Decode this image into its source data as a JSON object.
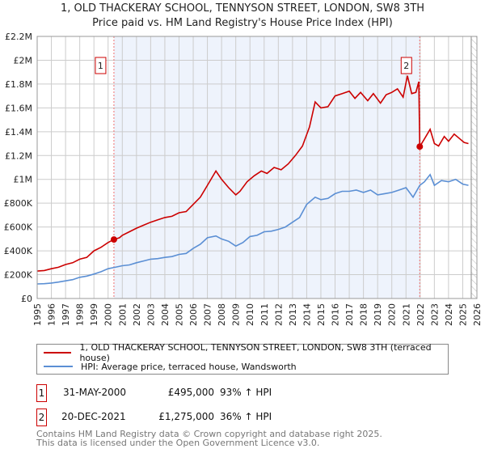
{
  "title": "1, OLD THACKERAY SCHOOL, TENNYSON STREET, LONDON, SW8 3TH",
  "subtitle": "Price paid vs. HM Land Registry's House Price Index (HPI)",
  "chart_data": {
    "type": "line",
    "title": "1, OLD THACKERAY SCHOOL, TENNYSON STREET, LONDON, SW8 3TH",
    "xlim": [
      1995,
      2026
    ],
    "ylim": [
      0,
      2200000
    ],
    "yticks": [
      0,
      200000,
      400000,
      600000,
      800000,
      1000000,
      1200000,
      1400000,
      1600000,
      1800000,
      2000000,
      2200000
    ],
    "ytick_labels": [
      "£0",
      "£200K",
      "£400K",
      "£600K",
      "£800K",
      "£1M",
      "£1.2M",
      "£1.4M",
      "£1.6M",
      "£1.8M",
      "£2M",
      "£2.2M"
    ],
    "xticks": [
      1995,
      1996,
      1997,
      1998,
      1999,
      2000,
      2001,
      2002,
      2003,
      2004,
      2005,
      2006,
      2007,
      2008,
      2009,
      2010,
      2011,
      2012,
      2013,
      2014,
      2015,
      2016,
      2017,
      2018,
      2019,
      2020,
      2021,
      2022,
      2023,
      2024,
      2025,
      2026
    ],
    "grid": true,
    "shaded_period": [
      2000.41,
      2021.97
    ],
    "forecast_hatch_from": 2025.6,
    "series": [
      {
        "name": "1, OLD THACKERAY SCHOOL, TENNYSON STREET, LONDON, SW8 3TH (terraced house)",
        "color": "#cc0000",
        "x": [
          1995,
          1995.5,
          1996,
          1996.5,
          1997,
          1997.5,
          1998,
          1998.5,
          1999,
          1999.5,
          2000,
          2000.41,
          2000.8,
          2001,
          2001.5,
          2002,
          2002.5,
          2003,
          2003.5,
          2004,
          2004.5,
          2005,
          2005.5,
          2006,
          2006.5,
          2007,
          2007.6,
          2008,
          2008.5,
          2009,
          2009.3,
          2009.8,
          2010.3,
          2010.8,
          2011.2,
          2011.7,
          2012.2,
          2012.7,
          2013.2,
          2013.7,
          2014.2,
          2014.6,
          2015,
          2015.5,
          2016,
          2016.5,
          2017,
          2017.4,
          2017.8,
          2018.3,
          2018.7,
          2019.2,
          2019.6,
          2020,
          2020.4,
          2020.8,
          2021.1,
          2021.4,
          2021.7,
          2021.9,
          2021.97,
          2022.3,
          2022.7,
          2023,
          2023.3,
          2023.7,
          2024,
          2024.4,
          2024.8,
          2025.1,
          2025.4
        ],
        "y": [
          230000,
          235000,
          250000,
          262000,
          285000,
          300000,
          330000,
          345000,
          400000,
          430000,
          470000,
          495000,
          510000,
          530000,
          560000,
          590000,
          615000,
          640000,
          660000,
          680000,
          690000,
          720000,
          730000,
          790000,
          850000,
          950000,
          1070000,
          1000000,
          930000,
          870000,
          900000,
          980000,
          1030000,
          1070000,
          1050000,
          1100000,
          1080000,
          1130000,
          1200000,
          1280000,
          1440000,
          1650000,
          1600000,
          1610000,
          1700000,
          1720000,
          1740000,
          1680000,
          1730000,
          1660000,
          1720000,
          1640000,
          1710000,
          1730000,
          1760000,
          1690000,
          1870000,
          1720000,
          1730000,
          1820000,
          1275000,
          1340000,
          1420000,
          1300000,
          1280000,
          1360000,
          1320000,
          1380000,
          1340000,
          1310000,
          1300000
        ]
      },
      {
        "name": "HPI: Average price, terraced house, Wandsworth",
        "color": "#5b8fd4",
        "x": [
          1995,
          1995.5,
          1996,
          1996.5,
          1997,
          1997.5,
          1998,
          1998.5,
          1999,
          1999.5,
          2000,
          2000.5,
          2001,
          2001.5,
          2002,
          2002.5,
          2003,
          2003.5,
          2004,
          2004.5,
          2005,
          2005.5,
          2006,
          2006.5,
          2007,
          2007.6,
          2008,
          2008.5,
          2009,
          2009.5,
          2010,
          2010.5,
          2011,
          2011.5,
          2012,
          2012.5,
          2013,
          2013.5,
          2014,
          2014.6,
          2015,
          2015.5,
          2016,
          2016.5,
          2017,
          2017.5,
          2018,
          2018.5,
          2019,
          2019.5,
          2020,
          2020.5,
          2021,
          2021.5,
          2021.97,
          2022.3,
          2022.7,
          2023,
          2023.5,
          2024,
          2024.5,
          2025,
          2025.4
        ],
        "y": [
          122000,
          124000,
          130000,
          138000,
          148000,
          158000,
          178000,
          188000,
          205000,
          225000,
          250000,
          262000,
          275000,
          282000,
          300000,
          315000,
          330000,
          335000,
          345000,
          352000,
          370000,
          378000,
          420000,
          455000,
          510000,
          525000,
          500000,
          480000,
          440000,
          470000,
          520000,
          530000,
          560000,
          565000,
          580000,
          600000,
          640000,
          680000,
          790000,
          850000,
          830000,
          840000,
          880000,
          900000,
          900000,
          910000,
          890000,
          910000,
          870000,
          880000,
          890000,
          910000,
          930000,
          850000,
          950000,
          980000,
          1040000,
          950000,
          990000,
          980000,
          1000000,
          960000,
          950000
        ]
      }
    ],
    "markers": [
      {
        "label": "1",
        "x": 2000.41,
        "y": 495000
      },
      {
        "label": "2",
        "x": 2021.97,
        "y": 1275000
      }
    ]
  },
  "legend": [
    {
      "label": "1, OLD THACKERAY SCHOOL, TENNYSON STREET, LONDON, SW8 3TH (terraced house)",
      "color": "#cc0000"
    },
    {
      "label": "HPI: Average price, terraced house, Wandsworth",
      "color": "#5b8fd4"
    }
  ],
  "transactions": [
    {
      "num": "1",
      "date": "31-MAY-2000",
      "price": "£495,000",
      "hpi": "93% ↑ HPI"
    },
    {
      "num": "2",
      "date": "20-DEC-2021",
      "price": "£1,275,000",
      "hpi": "36% ↑ HPI"
    }
  ],
  "footer": [
    "Contains HM Land Registry data © Crown copyright and database right 2025.",
    "This data is licensed under the Open Government Licence v3.0."
  ]
}
